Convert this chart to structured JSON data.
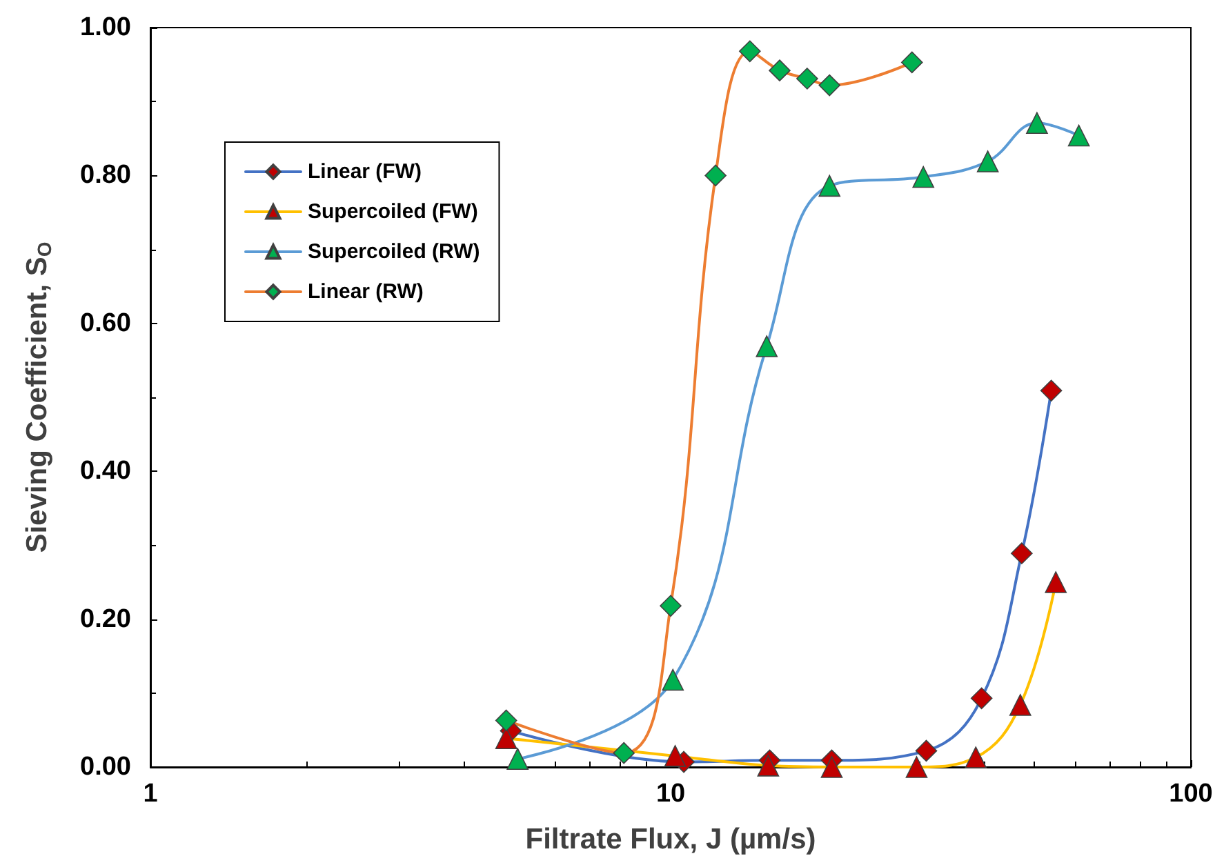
{
  "chart_data": {
    "type": "line",
    "xlabel": "Filtrate Flux, J (µm/s)",
    "ylabel": "Sieving Coefficient, S$_{O}$",
    "log": "x",
    "xlim": [
      1,
      100
    ],
    "xticks": [
      1,
      10,
      100
    ],
    "ylim": [
      0,
      1
    ],
    "yticks": [
      {
        "value": 0,
        "label": "0.00"
      },
      {
        "value": 0.2,
        "label": "0.20"
      },
      {
        "value": 0.4,
        "label": "0.40"
      },
      {
        "value": 0.6,
        "label": "0.60"
      },
      {
        "value": 0.8,
        "label": "0.80"
      },
      {
        "value": 1,
        "label": "1.00"
      }
    ],
    "grid": false,
    "legend": "top left",
    "line_style": "solid",
    "series": [
      {
        "name": "Linear (FW)",
        "color": "#4472c4",
        "marker": "diamond",
        "x": [
          4.93,
          10.6,
          15.5,
          20.4,
          31.0,
          39.6,
          47.3,
          53.9
        ],
        "values": [
          0.049,
          0.007,
          0.009,
          0.009,
          0.022,
          0.093,
          0.289,
          0.509
        ],
        "colors": [
          "#c00000",
          "#c00000",
          "#c00000",
          "#c00000",
          "#c00000",
          "#c00000",
          "#c00000",
          "#c00000"
        ]
      },
      {
        "name": "Supercoiled (FW)",
        "color": "#ffc000",
        "marker": "triangle",
        "x": [
          4.83,
          10.2,
          15.4,
          20.4,
          29.7,
          38.6,
          47.0,
          55.0
        ],
        "values": [
          0.039,
          0.015,
          0.002,
          0.0,
          0.0,
          0.013,
          0.084,
          0.25
        ],
        "colors": [
          "#c00000",
          "#c00000",
          "#c00000",
          "#c00000",
          "#c00000",
          "#c00000",
          "#c00000",
          "#c00000"
        ]
      },
      {
        "name": "Supercoiled (RW)",
        "color": "#5b9bd5",
        "marker": "triangle",
        "x": [
          5.08,
          10.1,
          15.3,
          20.2,
          30.6,
          40.7,
          50.6,
          60.9
        ],
        "values": [
          0.011,
          0.118,
          0.569,
          0.786,
          0.798,
          0.819,
          0.871,
          0.854
        ],
        "colors": [
          "#00b050",
          "#00b050",
          "#00b050",
          "#00b050",
          "#00b050",
          "#00b050",
          "#00b050",
          "#00b050"
        ]
      },
      {
        "name": "Linear (RW)",
        "color": "#ed7d31",
        "marker": "diamond",
        "x": [
          4.83,
          8.13,
          10.0,
          12.2,
          14.2,
          16.2,
          18.3,
          20.2,
          29.1
        ],
        "values": [
          0.063,
          0.019,
          0.218,
          0.8,
          0.968,
          0.942,
          0.931,
          0.922,
          0.953
        ],
        "colors": [
          "#00b050",
          "#00b050",
          "#00b050",
          "#00b050",
          "#00b050",
          "#00b050",
          "#00b050",
          "#00b050",
          "#00b050"
        ]
      }
    ]
  }
}
